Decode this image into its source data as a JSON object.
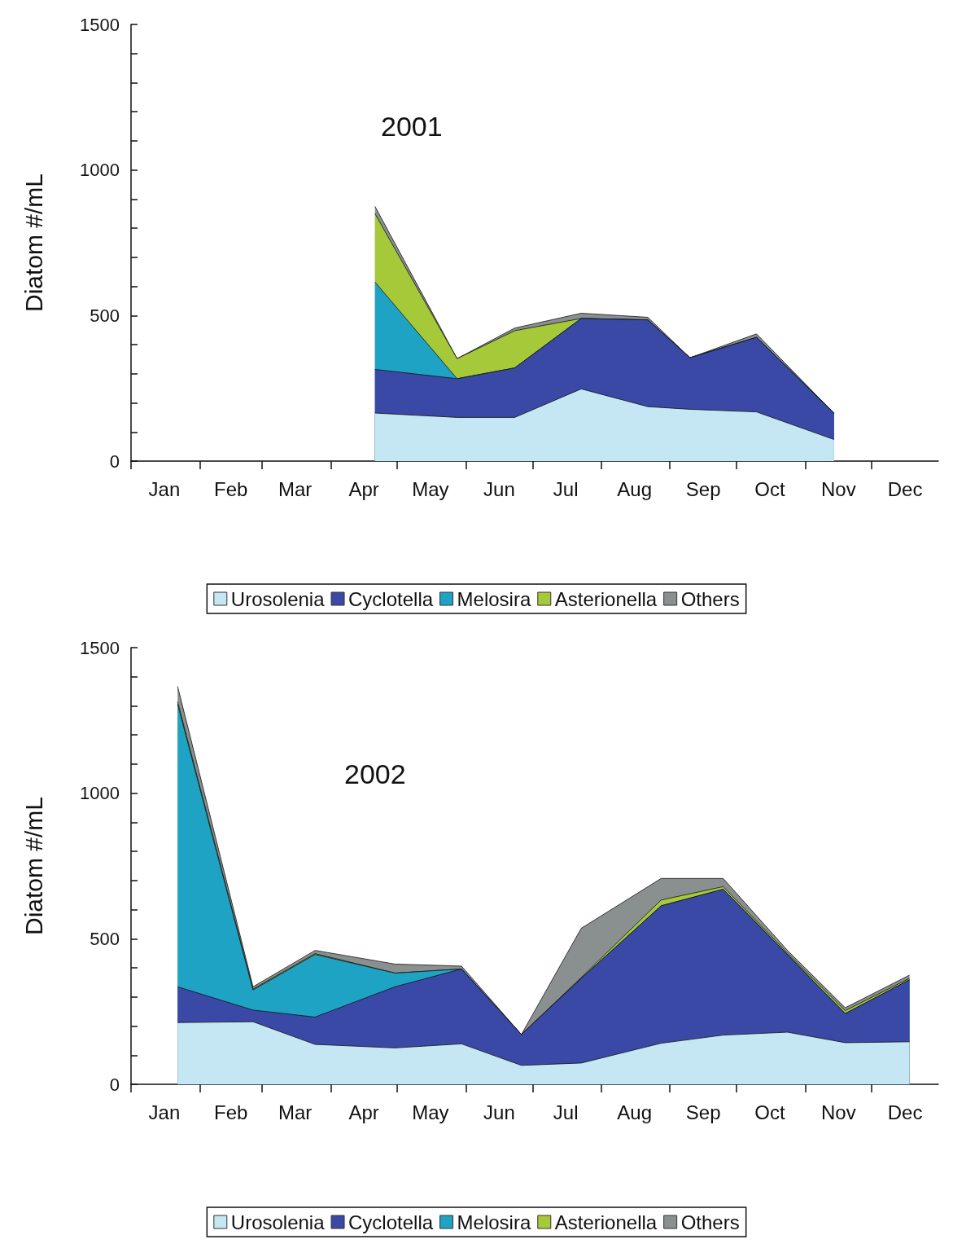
{
  "chart_data": [
    {
      "type": "area",
      "title": "2001",
      "ylabel": "Diatom #/mL",
      "stacked": true,
      "legend": "bottom",
      "x": [
        "--04-21",
        "--05-28",
        "--06-23",
        "--07-23",
        "--08-22",
        "--09-10",
        "--10-10",
        "--11-14"
      ],
      "xlim": [
        "--01-01",
        "--12-31"
      ],
      "xticks": [
        {
          "value": "--01-01",
          "label": null
        },
        {
          "value": "--01-16",
          "label": "Jan"
        },
        {
          "value": "--02-01",
          "label": null
        },
        {
          "value": "--02-15",
          "label": "Feb"
        },
        {
          "value": "--03-01",
          "label": null
        },
        {
          "value": "--03-16",
          "label": "Mar"
        },
        {
          "value": "--04-01",
          "label": null
        },
        {
          "value": "--04-16",
          "label": "Apr"
        },
        {
          "value": "--05-01",
          "label": null
        },
        {
          "value": "--05-16",
          "label": "May"
        },
        {
          "value": "--06-01",
          "label": null
        },
        {
          "value": "--06-16",
          "label": "Jun"
        },
        {
          "value": "--07-01",
          "label": null
        },
        {
          "value": "--07-16",
          "label": "Jul"
        },
        {
          "value": "--08-01",
          "label": null
        },
        {
          "value": "--08-16",
          "label": "Aug"
        },
        {
          "value": "--09-01",
          "label": null
        },
        {
          "value": "--09-16",
          "label": "Sep"
        },
        {
          "value": "--10-01",
          "label": null
        },
        {
          "value": "--10-16",
          "label": "Oct"
        },
        {
          "value": "--11-01",
          "label": null
        },
        {
          "value": "--11-16",
          "label": "Nov"
        },
        {
          "value": "--12-01",
          "label": null
        },
        {
          "value": "--12-16",
          "label": "Dec"
        }
      ],
      "ylim": [
        0,
        1500
      ],
      "yticks": [
        0,
        {
          "value": 100,
          "label": null
        },
        {
          "value": 200,
          "label": null
        },
        {
          "value": 300,
          "label": null
        },
        {
          "value": 400,
          "label": null
        },
        500,
        {
          "value": 600,
          "label": null
        },
        {
          "value": 700,
          "label": null
        },
        {
          "value": 800,
          "label": null
        },
        {
          "value": 900,
          "label": null
        },
        1000,
        {
          "value": 1100,
          "label": null
        },
        {
          "value": 1200,
          "label": null
        },
        {
          "value": 1300,
          "label": null
        },
        {
          "value": 1400,
          "label": null
        },
        1500
      ],
      "series": [
        {
          "name": "Urosolenia",
          "color": "#c5e6f3",
          "values": [
            165,
            150,
            150,
            248,
            187,
            178,
            169,
            74
          ]
        },
        {
          "name": "Cyclotella",
          "color": "#3a49a6",
          "values": [
            150,
            133,
            170,
            242,
            298,
            177,
            256,
            90
          ]
        },
        {
          "name": "Melosira",
          "color": "#1fa3c4",
          "values": [
            300,
            0,
            0,
            0,
            0,
            0,
            0,
            0
          ]
        },
        {
          "name": "Asterionella",
          "color": "#a6c93a",
          "values": [
            235,
            69,
            128,
            0,
            0,
            0,
            0,
            0
          ]
        },
        {
          "name": "Others",
          "color": "#8a9090",
          "values": [
            25,
            0,
            9,
            18,
            9,
            0,
            12,
            0
          ]
        }
      ]
    },
    {
      "type": "area",
      "title": "2002",
      "ylabel": "Diatom #/mL",
      "stacked": true,
      "legend": "bottom",
      "x": [
        "--01-22",
        "--02-25",
        "--03-25",
        "--04-30",
        "--05-30",
        "--06-26",
        "--07-23",
        "--08-28",
        "--09-25",
        "--10-24",
        "--11-19",
        "--12-18"
      ],
      "xlim": [
        "--01-01",
        "--12-31"
      ],
      "xticks": [
        {
          "value": "--01-01",
          "label": null
        },
        {
          "value": "--01-16",
          "label": "Jan"
        },
        {
          "value": "--02-01",
          "label": null
        },
        {
          "value": "--02-15",
          "label": "Feb"
        },
        {
          "value": "--03-01",
          "label": null
        },
        {
          "value": "--03-16",
          "label": "Mar"
        },
        {
          "value": "--04-01",
          "label": null
        },
        {
          "value": "--04-16",
          "label": "Apr"
        },
        {
          "value": "--05-01",
          "label": null
        },
        {
          "value": "--05-16",
          "label": "May"
        },
        {
          "value": "--06-01",
          "label": null
        },
        {
          "value": "--06-16",
          "label": "Jun"
        },
        {
          "value": "--07-01",
          "label": null
        },
        {
          "value": "--07-16",
          "label": "Jul"
        },
        {
          "value": "--08-01",
          "label": null
        },
        {
          "value": "--08-16",
          "label": "Aug"
        },
        {
          "value": "--09-01",
          "label": null
        },
        {
          "value": "--09-16",
          "label": "Sep"
        },
        {
          "value": "--10-01",
          "label": null
        },
        {
          "value": "--10-16",
          "label": "Oct"
        },
        {
          "value": "--11-01",
          "label": null
        },
        {
          "value": "--11-16",
          "label": "Nov"
        },
        {
          "value": "--12-01",
          "label": null
        },
        {
          "value": "--12-16",
          "label": "Dec"
        }
      ],
      "ylim": [
        0,
        1500
      ],
      "yticks": [
        0,
        {
          "value": 100,
          "label": null
        },
        {
          "value": 200,
          "label": null
        },
        {
          "value": 300,
          "label": null
        },
        {
          "value": 400,
          "label": null
        },
        500,
        {
          "value": 600,
          "label": null
        },
        {
          "value": 700,
          "label": null
        },
        {
          "value": 800,
          "label": null
        },
        {
          "value": 900,
          "label": null
        },
        1000,
        {
          "value": 1100,
          "label": null
        },
        {
          "value": 1200,
          "label": null
        },
        {
          "value": 1300,
          "label": null
        },
        {
          "value": 1400,
          "label": null
        },
        1500
      ],
      "series": [
        {
          "name": "Urosolenia",
          "color": "#c5e6f3",
          "values": [
            212,
            215,
            137,
            125,
            139,
            65,
            73,
            141,
            169,
            179,
            143,
            146
          ]
        },
        {
          "name": "Cyclotella",
          "color": "#3a49a6",
          "values": [
            123,
            40,
            94,
            210,
            257,
            106,
            291,
            472,
            501,
            266,
            100,
            213
          ]
        },
        {
          "name": "Melosira",
          "color": "#1fa3c4",
          "values": [
            971,
            69,
            215,
            47,
            0,
            0,
            0,
            0,
            0,
            0,
            0,
            0
          ]
        },
        {
          "name": "Asterionella",
          "color": "#a6c93a",
          "values": [
            8,
            3,
            3,
            0,
            0,
            0,
            3,
            20,
            9,
            5,
            10,
            5
          ]
        },
        {
          "name": "Others",
          "color": "#8a9090",
          "values": [
            53,
            8,
            11,
            31,
            10,
            0,
            169,
            74,
            28,
            10,
            10,
            11
          ]
        }
      ]
    }
  ]
}
